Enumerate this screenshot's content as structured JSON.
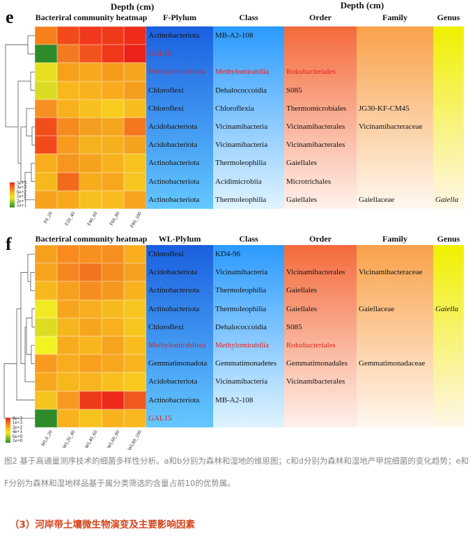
{
  "panels": [
    {
      "id": "e",
      "letter": "e",
      "heatmap_title": "Bacteriral community heatmap",
      "depth_left": "Depth (cm)",
      "depth_right": "Depth (cm)",
      "col_headers": [
        "F-Plylum",
        "Class",
        "Order",
        "Family",
        "Genus"
      ],
      "samples": [
        "F0_20",
        "F20_40",
        "F40_60",
        "F60_80",
        "F80_100"
      ],
      "legend": [
        "5e+3",
        "3e+3",
        "6e+2",
        "1e+2",
        "2e+1",
        "1e+1"
      ],
      "heat": [
        [
          "#f7801a",
          "#f24a1a",
          "#f1381c",
          "#ef3b1a",
          "#ef2c1a"
        ],
        [
          "#2f8a2a",
          "#f37a20",
          "#f2521c",
          "#f0381b",
          "#ed2218"
        ],
        [
          "#e8e01e",
          "#f8a01c",
          "#f7a81c",
          "#f59c1c",
          "#f5a51e"
        ],
        [
          "#d9dc22",
          "#f8b81c",
          "#f7b21e",
          "#f8aa1c",
          "#f59e1e"
        ],
        [
          "#f69020",
          "#f8b01c",
          "#f8c01e",
          "#f8cc1e",
          "#f8bc1c"
        ],
        [
          "#f24e1a",
          "#f58a1e",
          "#f49d1e",
          "#f5a61e",
          "#f4761e"
        ],
        [
          "#f24a1a",
          "#f79a1e",
          "#f5b21e",
          "#f5b01e",
          "#f5a21e"
        ],
        [
          "#f8ae1c",
          "#f6961e",
          "#f5a21e",
          "#f8b21e",
          "#f8c21e"
        ],
        [
          "#f7b81e",
          "#f26a1c",
          "#f7ac1c",
          "#f6a71e",
          "#f8c61e"
        ],
        [
          "#f6a21e",
          "#f8a81c",
          "#f7c01e",
          "#f8bc1e",
          "#f7a41e"
        ]
      ],
      "rows": [
        {
          "phylum": "Actinobacteriota",
          "class": "MB-A2-108",
          "order": "",
          "family": "",
          "genus": "",
          "red": false
        },
        {
          "phylum": "GAL15",
          "class": "",
          "order": "",
          "family": "",
          "genus": "",
          "red": true
        },
        {
          "phylum": "Methylomirabilota",
          "class": "Methylomirabilia",
          "order": "Rokubacteriales",
          "family": "",
          "genus": "",
          "red": true
        },
        {
          "phylum": "Chloroflexi",
          "class": "Dehalococcoidia",
          "order": "S085",
          "family": "",
          "genus": "",
          "red": false
        },
        {
          "phylum": "Chloroflexi",
          "class": "Chloroflexia",
          "order": "Thermomicrobiales",
          "family": "JG30-KF-CM45",
          "genus": "",
          "red": false
        },
        {
          "phylum": "Acidobacteriota",
          "class": "Vicinamibacteria",
          "order": "Vicinamibacterales",
          "family": "Vicinamibacteraceae",
          "genus": "",
          "red": false
        },
        {
          "phylum": "Acidobacteriota",
          "class": "Vicinamibacteria",
          "order": "Vicinamibacterales",
          "family": "",
          "genus": "",
          "red": false
        },
        {
          "phylum": "Actinobacteriota",
          "class": "Thermoleophilia",
          "order": "Gaiellales",
          "family": "",
          "genus": "",
          "red": false
        },
        {
          "phylum": "Actinobacteriota",
          "class": "Acidimicrobiia",
          "order": "Microtrichales",
          "family": "",
          "genus": "",
          "red": false
        },
        {
          "phylum": "Actinobacteriota",
          "class": "Thermoleophilia",
          "order": "Gaiellales",
          "family": "Gaiellaceae",
          "genus": "Gaiella",
          "red": false
        }
      ]
    },
    {
      "id": "f",
      "letter": "f",
      "heatmap_title": "Bacteriral community heatmap",
      "depth_left": "",
      "depth_right": "",
      "col_headers": [
        "WL-Plylum",
        "Class",
        "Order",
        "Family",
        "Genus"
      ],
      "samples": [
        "WL0_20",
        "WL20_40",
        "WL40_60",
        "WL60_80",
        "WL80_100"
      ],
      "legend": [
        "8e+3",
        "1e+3",
        "2e+2",
        "4e+1",
        "6e+0",
        "1e+0"
      ],
      "heat": [
        [
          "#f6a01e",
          "#f88a1e",
          "#f7901e",
          "#f88e1e",
          "#f8ac1e"
        ],
        [
          "#f6a41e",
          "#f58620",
          "#f3741e",
          "#f38a1e",
          "#f5a01e"
        ],
        [
          "#f7b81e",
          "#f7a01e",
          "#f58e1e",
          "#f6981e",
          "#f7b21e"
        ],
        [
          "#f1ea22",
          "#f7a41e",
          "#f7ae1e",
          "#f7ba1e",
          "#f8c41e"
        ],
        [
          "#dcdc20",
          "#f5b61e",
          "#f6a61e",
          "#f7b01e",
          "#f8c61e"
        ],
        [
          "#f3f222",
          "#f7ac1e",
          "#f8b61e",
          "#f5a41e",
          "#f8bc1e"
        ],
        [
          "#f79a1e",
          "#f8ac1e",
          "#f8a01e",
          "#f7a61e",
          "#f8b41e"
        ],
        [
          "#f8a81e",
          "#f7b81e",
          "#f8b41e",
          "#f8c01e",
          "#f8c81e"
        ],
        [
          "#f5c41e",
          "#f79820",
          "#ef3a1a",
          "#ee2a1a",
          "#f05a1c"
        ],
        [
          "#2f8a2a",
          "#f8b21e",
          "#f8c21e",
          "#f7b21e",
          "#f8b81e"
        ]
      ],
      "rows": [
        {
          "phylum": "Chloroflexi",
          "class": "KD4-96",
          "order": "",
          "family": "",
          "genus": "",
          "red": false
        },
        {
          "phylum": "Acidobacteriota",
          "class": "Vicinamibacteria",
          "order": "Vicinamibacterales",
          "family": "Vicinamibacteraceae",
          "genus": "",
          "red": false
        },
        {
          "phylum": "Actinobacteriota",
          "class": "Thermoleophilia",
          "order": "Gaiellales",
          "family": "",
          "genus": "",
          "red": false
        },
        {
          "phylum": "Actinobacteriota",
          "class": "Thermoleophilia",
          "order": "Gaiellales",
          "family": "Gaiellaceae",
          "genus": "Gaiella",
          "red": false
        },
        {
          "phylum": "Chloroflexi",
          "class": "Dehalococcoidia",
          "order": "S085",
          "family": "",
          "genus": "",
          "red": false
        },
        {
          "phylum": "Methylomirabilota",
          "class": "Methylomirabilia",
          "order": "Rokubacteriales",
          "family": "",
          "genus": "",
          "red": true
        },
        {
          "phylum": "Gemmatimonadota",
          "class": "Gemmatimonadetes",
          "order": "Gemmatimonadales",
          "family": "Gemmatimonadaceae",
          "genus": "",
          "red": false
        },
        {
          "phylum": "Acidobacteriota",
          "class": "Vicinamibacteria",
          "order": "Vicinamibacterales",
          "family": "",
          "genus": "",
          "red": false
        },
        {
          "phylum": "Actinobacteriota",
          "class": "MB-A2-108",
          "order": "",
          "family": "",
          "genus": "",
          "red": false
        },
        {
          "phylum": "GAL15",
          "class": "",
          "order": "",
          "family": "",
          "genus": "",
          "red": true
        }
      ]
    }
  ],
  "caption": "图2 基于高通量测序技术的细菌多样性分析。a和b分别为森林和湿地的维恩图；c和d分别为森林和湿地产甲烷细菌的变化趋势；e和F分别为森林和湿地样品基于属分类筛选的含量占前10的优势属。",
  "section_heading": "（3）河岸带土壤微生物演变及主要影响因素"
}
